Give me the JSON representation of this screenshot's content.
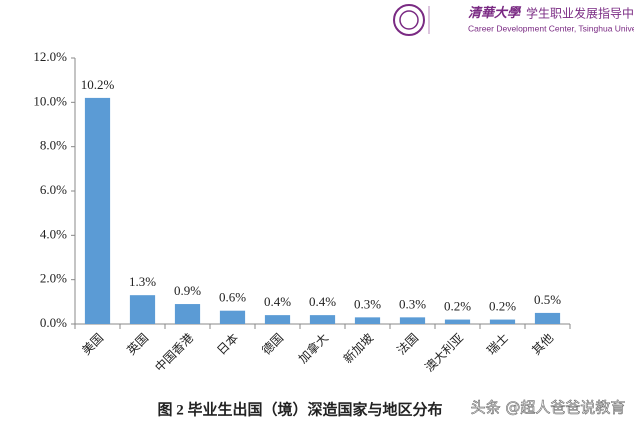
{
  "header": {
    "logo_name": "清華大學",
    "center_name": "学生职业发展指导中心",
    "center_name_en": "Career Development Center, Tsinghua University"
  },
  "chart_data": {
    "type": "bar",
    "title": "图 2 毕业生出国（境）深造国家与地区分布",
    "categories": [
      "美国",
      "英国",
      "中国香港",
      "日本",
      "德国",
      "加拿大",
      "新加坡",
      "法国",
      "澳大利亚",
      "瑞士",
      "其他"
    ],
    "values": [
      10.2,
      1.3,
      0.9,
      0.6,
      0.4,
      0.4,
      0.3,
      0.3,
      0.2,
      0.2,
      0.5
    ],
    "value_labels": [
      "10.2%",
      "1.3%",
      "0.9%",
      "0.6%",
      "0.4%",
      "0.4%",
      "0.3%",
      "0.3%",
      "0.2%",
      "0.2%",
      "0.5%"
    ],
    "color": "#5b9bd5",
    "ylim": [
      0,
      12
    ],
    "yticks": [
      {
        "value": 0,
        "label": "0.0%"
      },
      {
        "value": 2,
        "label": "2.0%"
      },
      {
        "value": 4,
        "label": "4.0%"
      },
      {
        "value": 6,
        "label": "6.0%"
      },
      {
        "value": 8,
        "label": "8.0%"
      },
      {
        "value": 10,
        "label": "10.0%"
      },
      {
        "value": 12,
        "label": "12.0%"
      }
    ],
    "grid": false
  },
  "watermark": "头条 @超人爸爸说教育"
}
